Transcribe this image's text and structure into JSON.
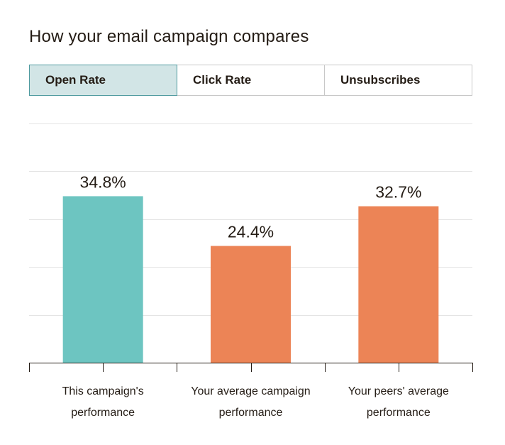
{
  "header": {
    "title": "How your email campaign compares"
  },
  "tabs": [
    {
      "label": "Open Rate",
      "active": true
    },
    {
      "label": "Click Rate",
      "active": false
    },
    {
      "label": "Unsubscribes",
      "active": false
    }
  ],
  "chart_data": {
    "type": "bar",
    "categories": [
      [
        "This campaign's",
        "performance"
      ],
      [
        "Your average campaign",
        "performance"
      ],
      [
        "Your peers' average",
        "performance"
      ]
    ],
    "values": [
      34.8,
      24.4,
      32.7
    ],
    "value_labels": [
      "34.8%",
      "24.4%",
      "32.7%"
    ],
    "colors": [
      "#6dc5c1",
      "#ec8456",
      "#ec8456"
    ],
    "ylim": [
      0,
      50
    ],
    "grid": true
  }
}
